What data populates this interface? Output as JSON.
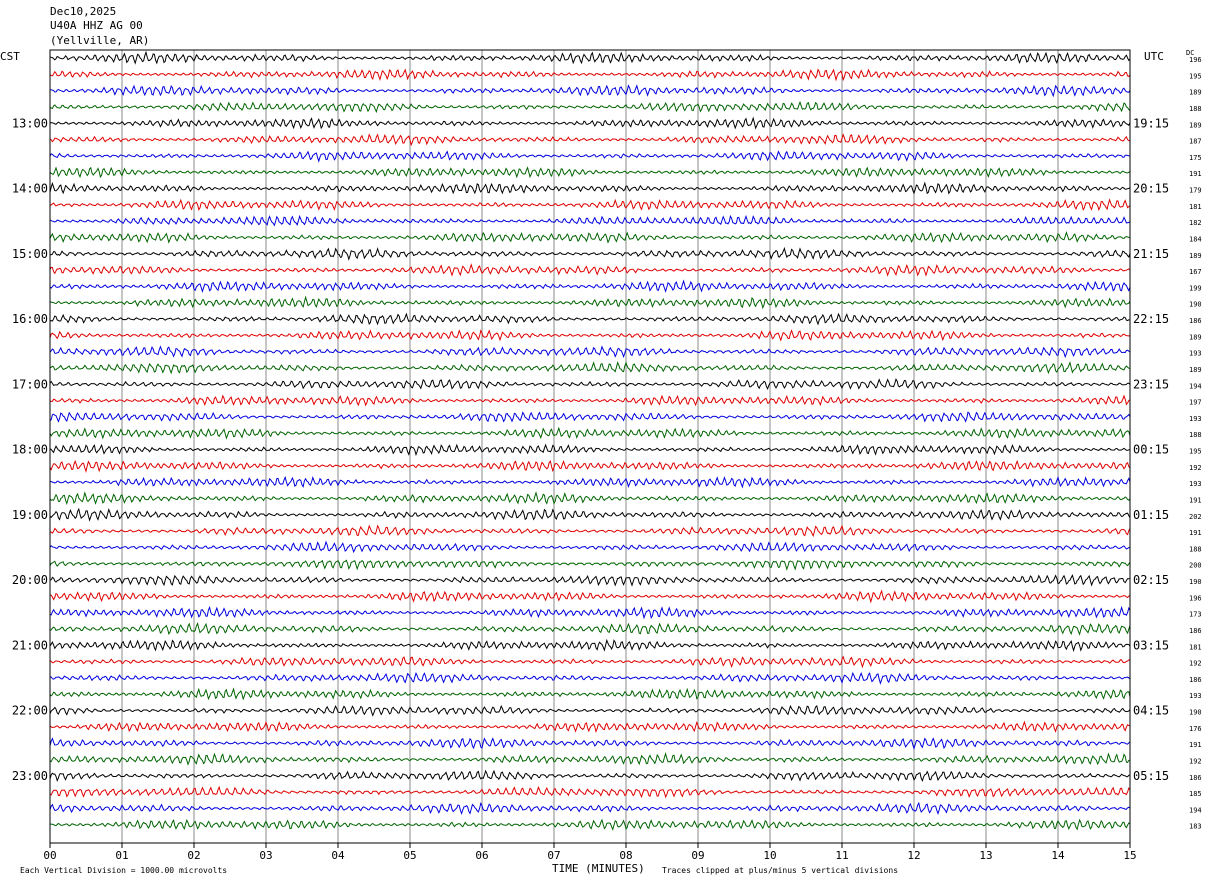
{
  "header": {
    "date": "Dec10,2025",
    "station": "U40A HHZ AG 00",
    "location": "(Yellville, AR)"
  },
  "left_tz": "CST",
  "right_tz": "UTC",
  "dc_label": "DC",
  "footer": {
    "left": "Each Vertical Division = 1000.00 microvolts",
    "center": "TIME (MINUTES)",
    "right": "Traces clipped at plus/minus 5 vertical divisions"
  },
  "chart_data": {
    "type": "line",
    "description_of_axes": "helicorder",
    "x_ticks": [
      "00",
      "01",
      "02",
      "03",
      "04",
      "05",
      "06",
      "07",
      "08",
      "09",
      "10",
      "11",
      "12",
      "13",
      "14",
      "15"
    ],
    "xlim": [
      0,
      15
    ],
    "xlabel": "TIME (MINUTES)",
    "left_hour_labels": [
      "13:00",
      "14:00",
      "15:00",
      "16:00",
      "17:00",
      "18:00",
      "19:00",
      "20:00",
      "21:00",
      "22:00",
      "23:00"
    ],
    "right_hour_labels": [
      "19:15",
      "20:15",
      "21:15",
      "22:15",
      "23:15",
      "00:15",
      "01:15",
      "02:15",
      "03:15",
      "04:15",
      "05:15"
    ],
    "first_labeled_row": 4,
    "rows_per_label": 4,
    "trace_colors": [
      "#000000",
      "#e00000",
      "#0000e0",
      "#006400"
    ],
    "dc_offsets": [
      196,
      195,
      189,
      188,
      189,
      187,
      175,
      191,
      179,
      181,
      182,
      184,
      189,
      167,
      199,
      190,
      186,
      189,
      193,
      189,
      194,
      197,
      193,
      188,
      195,
      192,
      193,
      191,
      202,
      191,
      188,
      200,
      190,
      196,
      173,
      186,
      181,
      192,
      186,
      193,
      190,
      176,
      191,
      192,
      186,
      185,
      194,
      183
    ]
  }
}
